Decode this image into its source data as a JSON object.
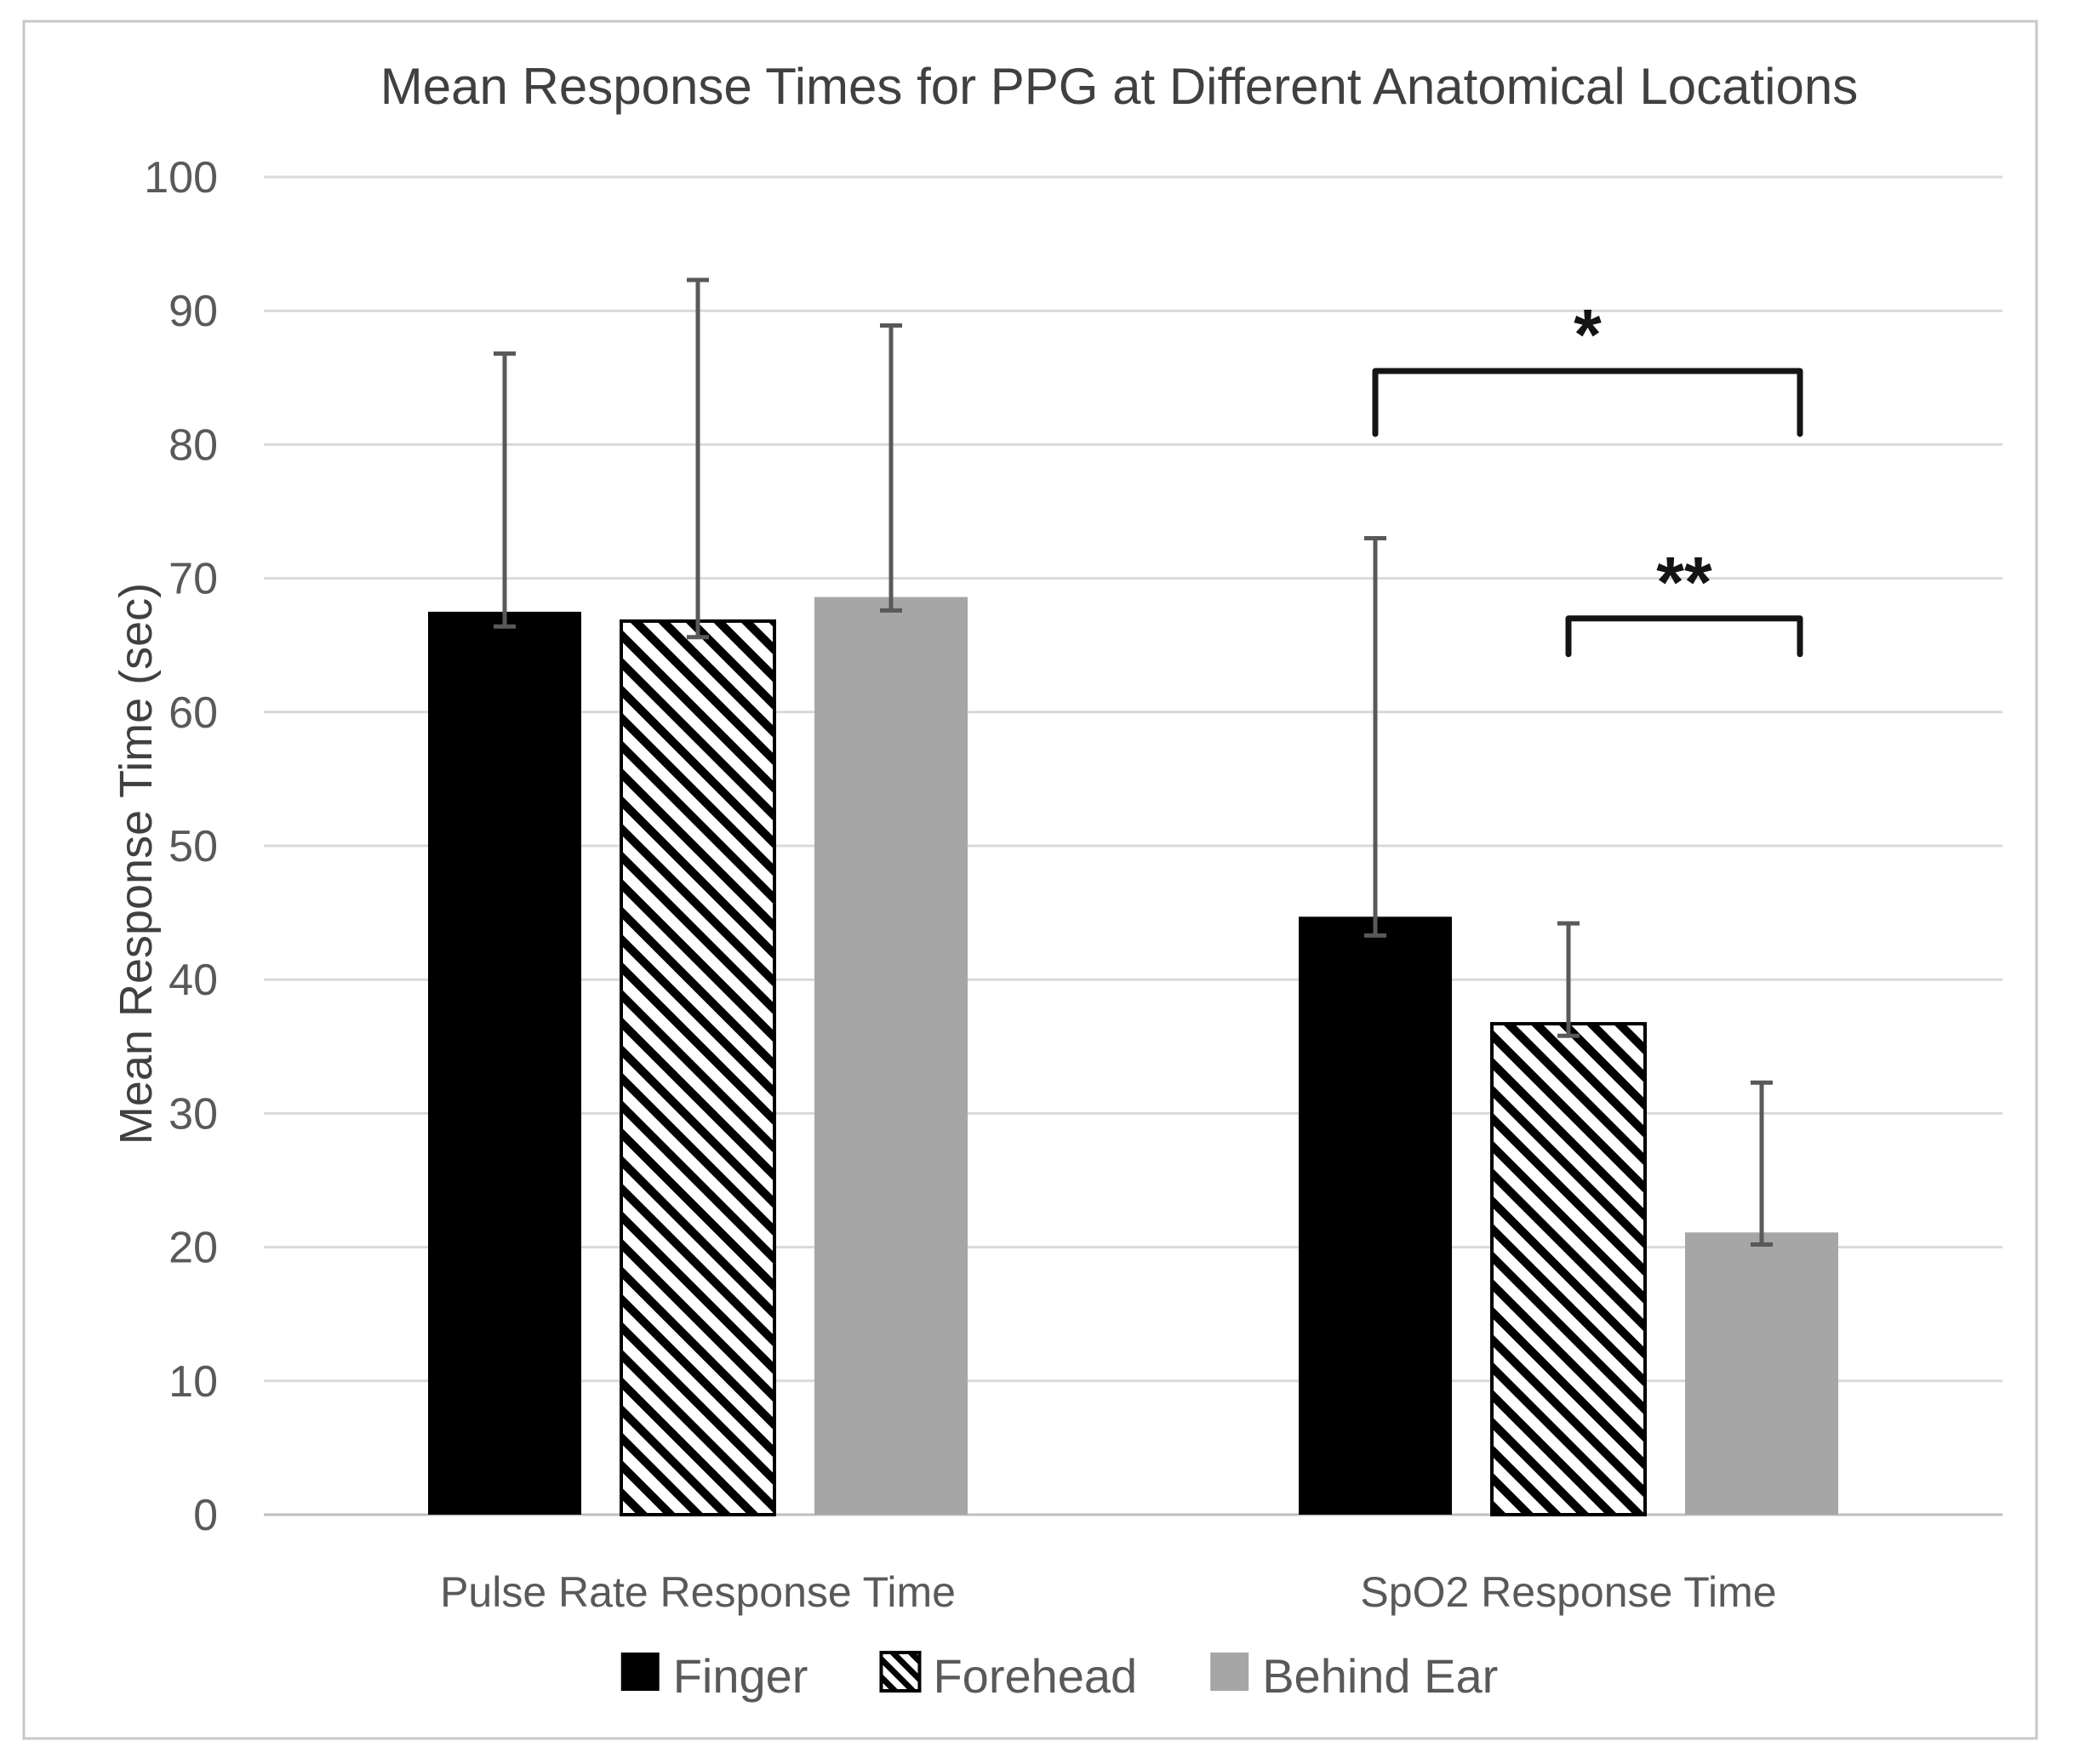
{
  "figure": {
    "title": "Mean Response Times for PPG at Different Anatomical Locations",
    "y_axis_label": "Mean Response Time (sec)"
  },
  "chart_data": {
    "type": "bar",
    "title": "Mean Response Times for PPG at Different Anatomical Locations",
    "xlabel": "",
    "ylabel": "Mean Response Time (sec)",
    "ylim": [
      0,
      100
    ],
    "yticks": [
      0,
      10,
      20,
      30,
      40,
      50,
      60,
      70,
      80,
      90,
      100
    ],
    "grid": true,
    "legend_position": "bottom",
    "categories": [
      "Pulse Rate Response Time",
      "SpO2 Response Time"
    ],
    "series": [
      {
        "name": "Finger",
        "style": "solid-black",
        "values": [
          67.5,
          44.7
        ],
        "error_plus": [
          19.3,
          28.3
        ],
        "error_minus": [
          1.1,
          1.4
        ]
      },
      {
        "name": "Forehead",
        "style": "diagonal-hatch",
        "values": [
          66.8,
          36.7
        ],
        "error_plus": [
          25.5,
          7.5
        ],
        "error_minus": [
          1.2,
          0.9
        ]
      },
      {
        "name": "Behind Ear",
        "style": "solid-gray",
        "values": [
          68.6,
          21.1
        ],
        "error_plus": [
          20.3,
          11.2
        ],
        "error_minus": [
          1.0,
          0.9
        ]
      }
    ],
    "significance_brackets": [
      {
        "label": "*",
        "category": "SpO2 Response Time",
        "from_series": "Finger",
        "to_series": "Behind Ear",
        "y_value": 85.5
      },
      {
        "label": "**",
        "category": "SpO2 Response Time",
        "from_series": "Forehead",
        "to_series": "Behind Ear",
        "y_value": 67.0
      }
    ]
  },
  "colors": {
    "background": "#ffffff",
    "finger_bar": "#000000",
    "behind_ear_bar": "#a6a6a6",
    "hatch_foreground": "#000000",
    "hatch_background": "#ffffff",
    "gridline": "#d9d9d9",
    "axis_line": "#bfbfbf",
    "text_primary": "#404040",
    "text_secondary": "#595959",
    "error_bar": "#595959",
    "bracket": "#141414",
    "frame_border": "#c8c8c8"
  }
}
